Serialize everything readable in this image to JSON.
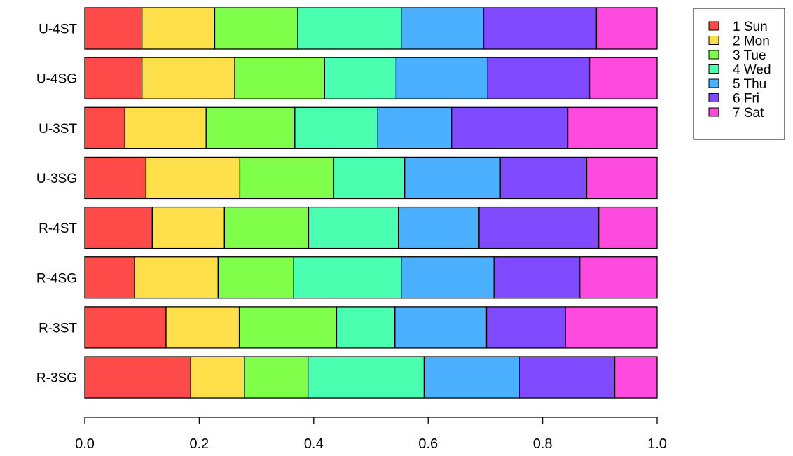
{
  "chart_data": {
    "type": "bar",
    "orientation": "horizontal",
    "stacked": true,
    "categories": [
      "U-4ST",
      "U-4SG",
      "U-3ST",
      "U-3SG",
      "R-4ST",
      "R-4SG",
      "R-3ST",
      "R-3SG"
    ],
    "series": [
      {
        "name": "1 Sun",
        "color": "#FF4A4A",
        "values": [
          0.1,
          0.1,
          0.07,
          0.107,
          0.118,
          0.087,
          0.142,
          0.185
        ]
      },
      {
        "name": "2 Mon",
        "color": "#FFE04A",
        "values": [
          0.127,
          0.162,
          0.142,
          0.164,
          0.126,
          0.146,
          0.128,
          0.094
        ]
      },
      {
        "name": "3 Tue",
        "color": "#80FF4A",
        "values": [
          0.145,
          0.157,
          0.155,
          0.164,
          0.147,
          0.132,
          0.17,
          0.111
        ]
      },
      {
        "name": "4 Wed",
        "color": "#4AFFB0",
        "values": [
          0.181,
          0.125,
          0.145,
          0.124,
          0.157,
          0.188,
          0.102,
          0.203
        ]
      },
      {
        "name": "5 Thu",
        "color": "#4AB0FF",
        "values": [
          0.144,
          0.16,
          0.129,
          0.167,
          0.141,
          0.162,
          0.16,
          0.167
        ]
      },
      {
        "name": "6 Fri",
        "color": "#804AFF",
        "values": [
          0.197,
          0.178,
          0.203,
          0.151,
          0.209,
          0.15,
          0.138,
          0.166
        ]
      },
      {
        "name": "7 Sat",
        "color": "#FF4AE0",
        "values": [
          0.106,
          0.118,
          0.156,
          0.123,
          0.102,
          0.135,
          0.16,
          0.074
        ]
      }
    ],
    "xlim": [
      0,
      1
    ],
    "xticks": [
      "0.0",
      "0.2",
      "0.4",
      "0.6",
      "0.8",
      "1.0"
    ],
    "xtick_values": [
      0,
      0.2,
      0.4,
      0.6,
      0.8,
      1.0
    ],
    "title": "",
    "xlabel": "",
    "ylabel": "",
    "grid": false,
    "legend_position": "top-right"
  }
}
